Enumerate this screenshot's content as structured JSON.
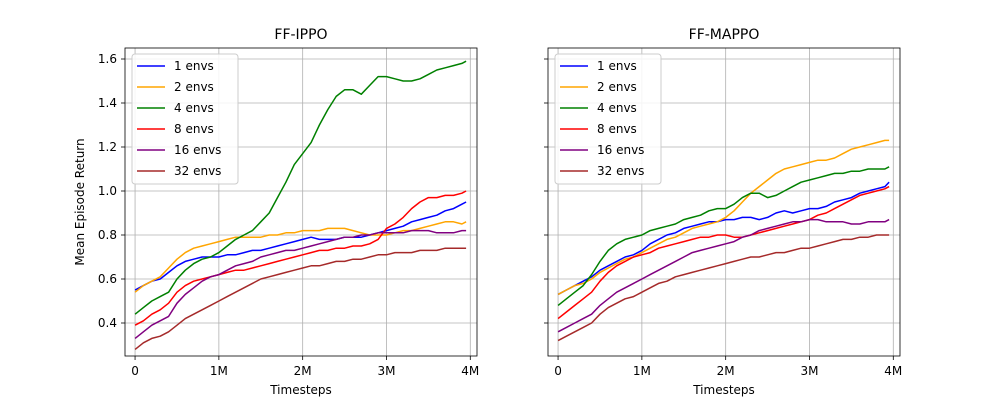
{
  "chart_data": [
    {
      "type": "line",
      "title": "FF-IPPO",
      "xlabel": "Timesteps",
      "ylabel": "Mean Episode Return",
      "xlim": [
        -0.12,
        4.08
      ],
      "ylim": [
        0.25,
        1.65
      ],
      "xticks": [
        0,
        1,
        2,
        3,
        4
      ],
      "xtick_labels": [
        "0",
        "1M",
        "2M",
        "3M",
        "4M"
      ],
      "yticks": [
        0.4,
        0.6,
        0.8,
        1.0,
        1.2,
        1.4,
        1.6
      ],
      "ytick_labels": [
        "0.4",
        "0.6",
        "0.8",
        "1.0",
        "1.2",
        "1.4",
        "1.6"
      ],
      "grid": true,
      "legend_position": "top-left",
      "x": [
        0,
        0.1,
        0.2,
        0.3,
        0.4,
        0.5,
        0.6,
        0.7,
        0.8,
        0.9,
        1.0,
        1.1,
        1.2,
        1.3,
        1.4,
        1.5,
        1.6,
        1.7,
        1.8,
        1.9,
        2.0,
        2.1,
        2.2,
        2.3,
        2.4,
        2.5,
        2.6,
        2.7,
        2.8,
        2.9,
        3.0,
        3.1,
        3.2,
        3.3,
        3.4,
        3.5,
        3.6,
        3.7,
        3.8,
        3.9,
        3.95
      ],
      "series": [
        {
          "name": "1 envs",
          "color": "#0000ff",
          "values": [
            0.55,
            0.57,
            0.59,
            0.6,
            0.63,
            0.66,
            0.68,
            0.69,
            0.7,
            0.7,
            0.7,
            0.71,
            0.71,
            0.72,
            0.73,
            0.73,
            0.74,
            0.75,
            0.76,
            0.77,
            0.78,
            0.79,
            0.78,
            0.78,
            0.78,
            0.79,
            0.79,
            0.79,
            0.8,
            0.81,
            0.82,
            0.83,
            0.84,
            0.86,
            0.87,
            0.88,
            0.89,
            0.91,
            0.92,
            0.94,
            0.95
          ]
        },
        {
          "name": "2 envs",
          "color": "#ffa500",
          "values": [
            0.54,
            0.57,
            0.59,
            0.61,
            0.65,
            0.69,
            0.72,
            0.74,
            0.75,
            0.76,
            0.77,
            0.78,
            0.79,
            0.79,
            0.79,
            0.79,
            0.8,
            0.8,
            0.81,
            0.81,
            0.82,
            0.82,
            0.82,
            0.83,
            0.83,
            0.83,
            0.82,
            0.81,
            0.8,
            0.8,
            0.8,
            0.81,
            0.82,
            0.82,
            0.83,
            0.84,
            0.85,
            0.86,
            0.86,
            0.85,
            0.86
          ]
        },
        {
          "name": "4 envs",
          "color": "#008000",
          "values": [
            0.44,
            0.47,
            0.5,
            0.52,
            0.54,
            0.6,
            0.64,
            0.67,
            0.69,
            0.7,
            0.72,
            0.75,
            0.78,
            0.8,
            0.82,
            0.86,
            0.9,
            0.97,
            1.04,
            1.12,
            1.17,
            1.22,
            1.3,
            1.37,
            1.43,
            1.46,
            1.46,
            1.44,
            1.48,
            1.52,
            1.52,
            1.51,
            1.5,
            1.5,
            1.51,
            1.53,
            1.55,
            1.56,
            1.57,
            1.58,
            1.59
          ]
        },
        {
          "name": "8 envs",
          "color": "#ff0000",
          "values": [
            0.39,
            0.41,
            0.44,
            0.46,
            0.49,
            0.54,
            0.57,
            0.59,
            0.6,
            0.61,
            0.62,
            0.63,
            0.64,
            0.64,
            0.65,
            0.66,
            0.67,
            0.68,
            0.69,
            0.7,
            0.71,
            0.72,
            0.73,
            0.73,
            0.74,
            0.74,
            0.75,
            0.75,
            0.76,
            0.78,
            0.83,
            0.85,
            0.88,
            0.92,
            0.95,
            0.97,
            0.97,
            0.98,
            0.98,
            0.99,
            1.0
          ]
        },
        {
          "name": "16 envs",
          "color": "#800080",
          "values": [
            0.33,
            0.36,
            0.39,
            0.41,
            0.43,
            0.49,
            0.53,
            0.56,
            0.59,
            0.61,
            0.62,
            0.64,
            0.66,
            0.67,
            0.68,
            0.7,
            0.71,
            0.72,
            0.73,
            0.73,
            0.74,
            0.75,
            0.76,
            0.77,
            0.78,
            0.79,
            0.79,
            0.8,
            0.8,
            0.81,
            0.81,
            0.81,
            0.81,
            0.82,
            0.82,
            0.82,
            0.81,
            0.81,
            0.81,
            0.82,
            0.82
          ]
        },
        {
          "name": "32 envs",
          "color": "#a52a2a",
          "values": [
            0.28,
            0.31,
            0.33,
            0.34,
            0.36,
            0.39,
            0.42,
            0.44,
            0.46,
            0.48,
            0.5,
            0.52,
            0.54,
            0.56,
            0.58,
            0.6,
            0.61,
            0.62,
            0.63,
            0.64,
            0.65,
            0.66,
            0.66,
            0.67,
            0.68,
            0.68,
            0.69,
            0.69,
            0.7,
            0.71,
            0.71,
            0.72,
            0.72,
            0.72,
            0.73,
            0.73,
            0.73,
            0.74,
            0.74,
            0.74,
            0.74
          ]
        }
      ]
    },
    {
      "type": "line",
      "title": "FF-MAPPO",
      "xlabel": "Timesteps",
      "ylabel": "",
      "xlim": [
        -0.12,
        4.08
      ],
      "ylim": [
        0.25,
        1.65
      ],
      "xticks": [
        0,
        1,
        2,
        3,
        4
      ],
      "xtick_labels": [
        "0",
        "1M",
        "2M",
        "3M",
        "4M"
      ],
      "yticks": [
        0.4,
        0.6,
        0.8,
        1.0,
        1.2,
        1.4,
        1.6
      ],
      "ytick_labels": [],
      "grid": true,
      "legend_position": "top-left",
      "x": [
        0,
        0.1,
        0.2,
        0.3,
        0.4,
        0.5,
        0.6,
        0.7,
        0.8,
        0.9,
        1.0,
        1.1,
        1.2,
        1.3,
        1.4,
        1.5,
        1.6,
        1.7,
        1.8,
        1.9,
        2.0,
        2.1,
        2.2,
        2.3,
        2.4,
        2.5,
        2.6,
        2.7,
        2.8,
        2.9,
        3.0,
        3.1,
        3.2,
        3.3,
        3.4,
        3.5,
        3.6,
        3.7,
        3.8,
        3.9,
        3.95
      ],
      "series": [
        {
          "name": "1 envs",
          "color": "#0000ff",
          "values": [
            0.53,
            0.55,
            0.57,
            0.59,
            0.61,
            0.64,
            0.66,
            0.68,
            0.7,
            0.71,
            0.73,
            0.76,
            0.78,
            0.8,
            0.81,
            0.83,
            0.84,
            0.85,
            0.86,
            0.86,
            0.87,
            0.87,
            0.88,
            0.88,
            0.87,
            0.88,
            0.9,
            0.91,
            0.9,
            0.91,
            0.92,
            0.92,
            0.93,
            0.95,
            0.96,
            0.97,
            0.99,
            1.0,
            1.01,
            1.02,
            1.04
          ]
        },
        {
          "name": "2 envs",
          "color": "#ffa500",
          "values": [
            0.53,
            0.55,
            0.57,
            0.58,
            0.6,
            0.63,
            0.65,
            0.67,
            0.69,
            0.7,
            0.72,
            0.74,
            0.76,
            0.78,
            0.79,
            0.81,
            0.83,
            0.84,
            0.85,
            0.86,
            0.88,
            0.91,
            0.95,
            0.99,
            1.02,
            1.05,
            1.08,
            1.1,
            1.11,
            1.12,
            1.13,
            1.14,
            1.14,
            1.15,
            1.17,
            1.19,
            1.2,
            1.21,
            1.22,
            1.23,
            1.23
          ]
        },
        {
          "name": "4 envs",
          "color": "#008000",
          "values": [
            0.48,
            0.51,
            0.54,
            0.57,
            0.62,
            0.68,
            0.73,
            0.76,
            0.78,
            0.79,
            0.8,
            0.82,
            0.83,
            0.84,
            0.85,
            0.87,
            0.88,
            0.89,
            0.91,
            0.92,
            0.92,
            0.94,
            0.97,
            0.99,
            0.99,
            0.97,
            0.98,
            1.0,
            1.02,
            1.04,
            1.05,
            1.06,
            1.07,
            1.08,
            1.08,
            1.09,
            1.09,
            1.1,
            1.1,
            1.1,
            1.11
          ]
        },
        {
          "name": "8 envs",
          "color": "#ff0000",
          "values": [
            0.42,
            0.45,
            0.48,
            0.51,
            0.54,
            0.59,
            0.63,
            0.66,
            0.68,
            0.7,
            0.71,
            0.72,
            0.74,
            0.75,
            0.76,
            0.77,
            0.78,
            0.79,
            0.79,
            0.8,
            0.8,
            0.79,
            0.79,
            0.8,
            0.81,
            0.82,
            0.83,
            0.84,
            0.85,
            0.86,
            0.87,
            0.89,
            0.9,
            0.92,
            0.94,
            0.96,
            0.98,
            0.99,
            1.0,
            1.01,
            1.02
          ]
        },
        {
          "name": "16 envs",
          "color": "#800080",
          "values": [
            0.36,
            0.38,
            0.4,
            0.42,
            0.44,
            0.48,
            0.51,
            0.54,
            0.56,
            0.58,
            0.6,
            0.62,
            0.64,
            0.66,
            0.68,
            0.7,
            0.72,
            0.73,
            0.74,
            0.75,
            0.76,
            0.77,
            0.79,
            0.8,
            0.82,
            0.83,
            0.84,
            0.85,
            0.86,
            0.86,
            0.87,
            0.87,
            0.86,
            0.86,
            0.86,
            0.85,
            0.85,
            0.86,
            0.86,
            0.86,
            0.87
          ]
        },
        {
          "name": "32 envs",
          "color": "#a52a2a",
          "values": [
            0.32,
            0.34,
            0.36,
            0.38,
            0.4,
            0.44,
            0.47,
            0.49,
            0.51,
            0.52,
            0.54,
            0.56,
            0.58,
            0.59,
            0.61,
            0.62,
            0.63,
            0.64,
            0.65,
            0.66,
            0.67,
            0.68,
            0.69,
            0.7,
            0.7,
            0.71,
            0.72,
            0.72,
            0.73,
            0.74,
            0.74,
            0.75,
            0.76,
            0.77,
            0.78,
            0.78,
            0.79,
            0.79,
            0.8,
            0.8,
            0.8
          ]
        }
      ]
    }
  ]
}
